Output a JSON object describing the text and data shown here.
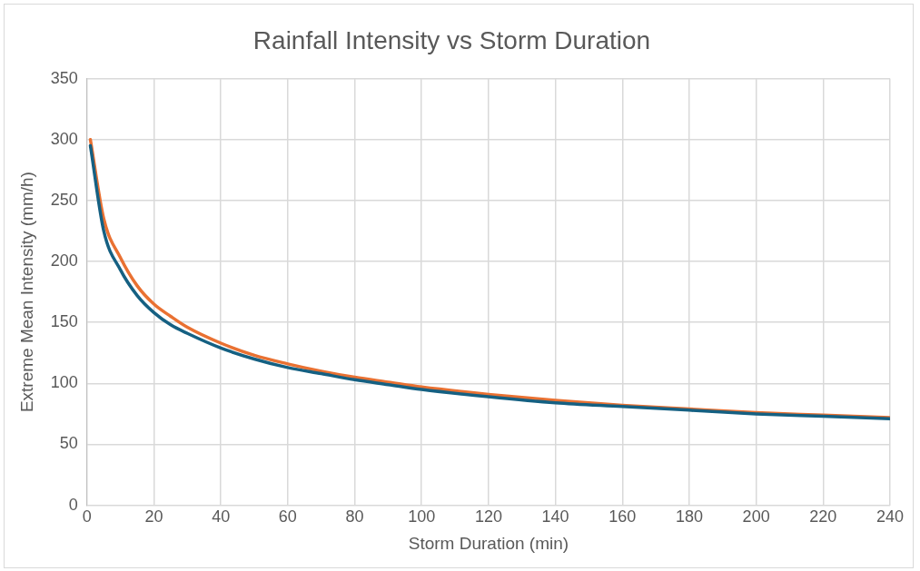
{
  "chart_data": {
    "type": "line",
    "title": "Rainfall Intensity vs Storm Duration",
    "xlabel": "Storm Duration (min)",
    "ylabel": "Extreme Mean Intensity (mm/h)",
    "x": [
      1,
      5,
      10,
      15,
      20,
      25,
      30,
      40,
      50,
      60,
      70,
      80,
      90,
      100,
      120,
      140,
      160,
      180,
      200,
      220,
      240
    ],
    "series": [
      {
        "color": "#156082",
        "values": [
          295,
          225,
          193,
          172,
          158,
          148,
          141,
          129,
          120,
          113,
          108,
          103,
          99,
          95,
          89,
          84,
          81,
          78,
          75,
          73,
          71
        ]
      },
      {
        "color": "#e97132",
        "values": [
          300,
          235,
          203,
          180,
          165,
          155,
          146,
          133,
          123,
          116,
          110,
          105,
          101,
          97,
          91,
          86,
          82,
          79,
          76,
          74,
          72
        ]
      }
    ],
    "xlim": [
      0,
      240
    ],
    "xticks": [
      0,
      20,
      40,
      60,
      80,
      100,
      120,
      140,
      160,
      180,
      200,
      220,
      240
    ],
    "ylim": [
      0,
      350
    ],
    "yticks": [
      0,
      50,
      100,
      150,
      200,
      250,
      300,
      350
    ],
    "grid": true,
    "legend": false,
    "marker": "none",
    "line_style": "solid"
  }
}
